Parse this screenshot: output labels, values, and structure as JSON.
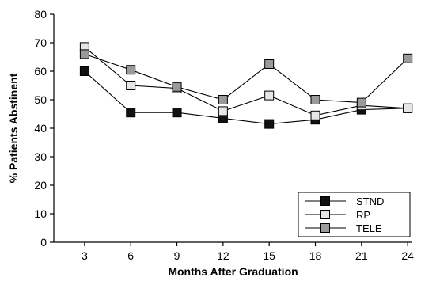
{
  "chart_data": {
    "type": "line",
    "title": "",
    "xlabel": "Months After Graduation",
    "ylabel": "% Patients Abstinent",
    "x": [
      3,
      6,
      9,
      12,
      15,
      18,
      21,
      24
    ],
    "xticks": [
      "3",
      "6",
      "9",
      "12",
      "15",
      "18",
      "21",
      "24"
    ],
    "xlim": [
      1,
      24.3
    ],
    "ylim": [
      0,
      80
    ],
    "yticks": [
      "0",
      "10",
      "20",
      "30",
      "40",
      "50",
      "60",
      "70",
      "80"
    ],
    "grid": false,
    "legend_position": "bottom-right",
    "series": [
      {
        "name": "STND",
        "values": [
          60,
          45.5,
          45.5,
          43.5,
          41.5,
          43,
          46.5,
          47
        ],
        "marker_color": "#111111"
      },
      {
        "name": "RP",
        "values": [
          68.5,
          55,
          54,
          46,
          51.5,
          44.5,
          48,
          47
        ],
        "marker_color": "#e6e6e6"
      },
      {
        "name": "TELE",
        "values": [
          66,
          60.5,
          54.5,
          50,
          62.5,
          50,
          49,
          64.5
        ],
        "marker_color": "#9a9a9a"
      }
    ]
  }
}
